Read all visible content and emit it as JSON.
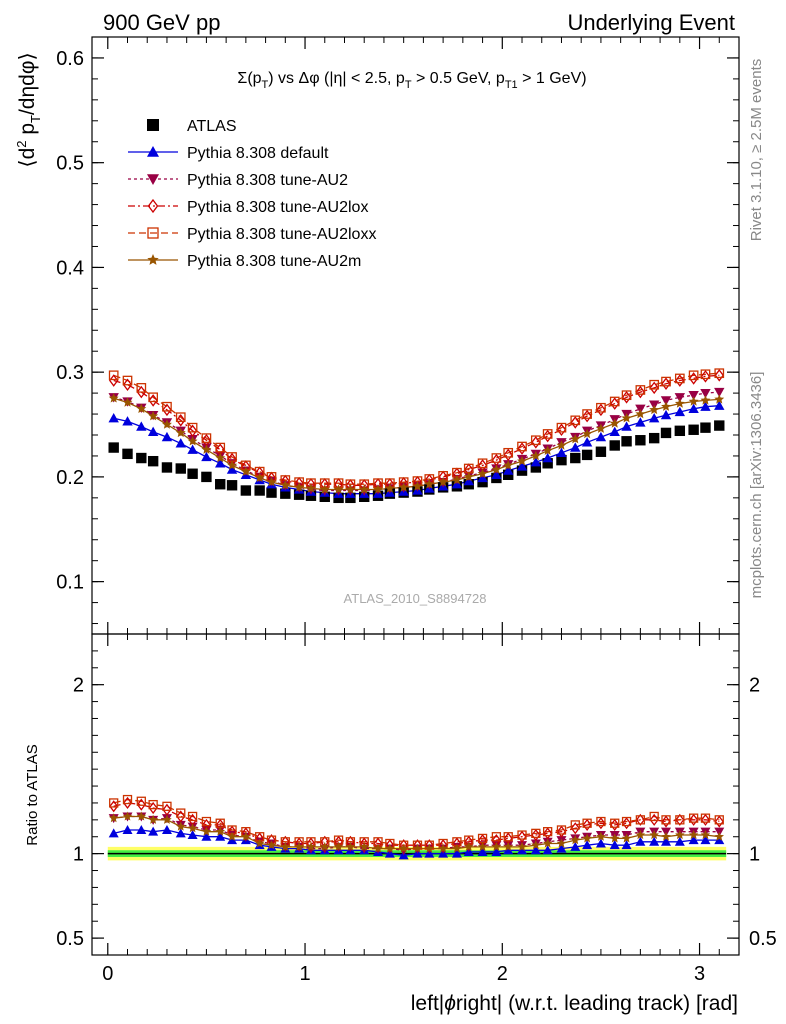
{
  "header": {
    "left": "900 GeV pp",
    "right": "Underlying Event"
  },
  "side_labels": {
    "rivet": "Rivet 3.1.10, ≥ 2.5M events",
    "mcplots": "mcplots.cern.ch [arXiv:1306.3436]"
  },
  "watermark": "ATLAS_2010_S8894728",
  "colors": {
    "atlas": "#000000",
    "default": "#0000dd",
    "au2": "#990044",
    "au2lox": "#cc0000",
    "au2loxx": "#cc3300",
    "au2m": "#995500",
    "band_inner": "#44ee44",
    "band_outer": "#ffff66"
  },
  "chart_data": [
    {
      "type": "scatter",
      "panel": "main",
      "title": "Σ(p_T) vs Δφ (|η| < 2.5, p_T > 0.5 GeV, p_T1 > 1 GeV)",
      "title_parts": {
        "a": "Σ(p",
        "a_sub": "T",
        "b": ") vs Δφ (|η| < 2.5, p",
        "b_sub": "T",
        "c": " > 0.5 GeV, p",
        "c_sub": "T1",
        "d": " > 1 GeV)"
      },
      "ylabel": "⟨d² p_T/dηdφ⟩",
      "ylabel_parts": {
        "open": "⟨d",
        "sup": "2",
        "p": " p",
        "sub": "T",
        "rest": "/dηdφ⟩"
      },
      "ylim": [
        0.05,
        0.62
      ],
      "yticks": [
        0.1,
        0.2,
        0.3,
        0.4,
        0.5,
        0.6
      ],
      "ytick_labels": [
        "0.1",
        "0.2",
        "0.3",
        "0.4",
        "0.5",
        "0.6"
      ],
      "xlim": [
        -0.08,
        3.2
      ],
      "legend_position": "top-left",
      "x": [
        0.03,
        0.1,
        0.17,
        0.23,
        0.3,
        0.37,
        0.43,
        0.5,
        0.57,
        0.63,
        0.7,
        0.77,
        0.83,
        0.9,
        0.97,
        1.03,
        1.1,
        1.17,
        1.23,
        1.3,
        1.37,
        1.43,
        1.5,
        1.57,
        1.63,
        1.7,
        1.77,
        1.83,
        1.9,
        1.97,
        2.03,
        2.1,
        2.17,
        2.23,
        2.3,
        2.37,
        2.43,
        2.5,
        2.57,
        2.63,
        2.7,
        2.77,
        2.83,
        2.9,
        2.97,
        3.03,
        3.1
      ],
      "series": [
        {
          "name": "ATLAS",
          "key": "atlas",
          "marker": "square",
          "line": "none",
          "values": [
            0.228,
            0.222,
            0.218,
            0.215,
            0.209,
            0.208,
            0.203,
            0.2,
            0.193,
            0.192,
            0.187,
            0.187,
            0.185,
            0.184,
            0.183,
            0.182,
            0.181,
            0.18,
            0.18,
            0.181,
            0.182,
            0.184,
            0.185,
            0.186,
            0.188,
            0.19,
            0.191,
            0.193,
            0.195,
            0.199,
            0.202,
            0.206,
            0.209,
            0.213,
            0.216,
            0.218,
            0.221,
            0.224,
            0.23,
            0.234,
            0.235,
            0.237,
            0.242,
            0.244,
            0.245,
            0.247,
            0.249
          ]
        },
        {
          "name": "Pythia 8.308 default",
          "key": "default",
          "marker": "triangle",
          "line": "solid",
          "values": [
            0.256,
            0.253,
            0.248,
            0.243,
            0.238,
            0.232,
            0.226,
            0.219,
            0.213,
            0.207,
            0.202,
            0.197,
            0.193,
            0.19,
            0.188,
            0.186,
            0.185,
            0.184,
            0.184,
            0.184,
            0.184,
            0.185,
            0.186,
            0.187,
            0.189,
            0.191,
            0.193,
            0.196,
            0.199,
            0.202,
            0.206,
            0.21,
            0.214,
            0.218,
            0.223,
            0.228,
            0.233,
            0.238,
            0.243,
            0.248,
            0.252,
            0.256,
            0.259,
            0.262,
            0.265,
            0.267,
            0.268
          ]
        },
        {
          "name": "Pythia 8.308 tune-AU2",
          "key": "au2",
          "marker": "triangle-down",
          "line": "dotted",
          "values": [
            0.276,
            0.272,
            0.266,
            0.259,
            0.252,
            0.244,
            0.236,
            0.228,
            0.22,
            0.213,
            0.206,
            0.2,
            0.196,
            0.192,
            0.19,
            0.188,
            0.187,
            0.187,
            0.187,
            0.187,
            0.188,
            0.189,
            0.19,
            0.191,
            0.193,
            0.195,
            0.198,
            0.201,
            0.204,
            0.208,
            0.212,
            0.217,
            0.222,
            0.227,
            0.233,
            0.238,
            0.244,
            0.249,
            0.255,
            0.26,
            0.265,
            0.269,
            0.273,
            0.276,
            0.278,
            0.28,
            0.281
          ]
        },
        {
          "name": "Pythia 8.308 tune-AU2lox",
          "key": "au2lox",
          "marker": "diamond-open",
          "line": "dashdot",
          "values": [
            0.292,
            0.288,
            0.281,
            0.273,
            0.264,
            0.254,
            0.244,
            0.235,
            0.226,
            0.217,
            0.21,
            0.204,
            0.199,
            0.196,
            0.194,
            0.193,
            0.193,
            0.193,
            0.192,
            0.192,
            0.193,
            0.193,
            0.194,
            0.195,
            0.197,
            0.2,
            0.203,
            0.207,
            0.211,
            0.216,
            0.221,
            0.227,
            0.233,
            0.239,
            0.245,
            0.252,
            0.258,
            0.264,
            0.27,
            0.276,
            0.281,
            0.285,
            0.289,
            0.292,
            0.294,
            0.296,
            0.297
          ]
        },
        {
          "name": "Pythia 8.308 tune-AU2loxx",
          "key": "au2loxx",
          "marker": "square-open",
          "line": "dashed",
          "values": [
            0.297,
            0.292,
            0.285,
            0.276,
            0.267,
            0.257,
            0.247,
            0.237,
            0.228,
            0.219,
            0.211,
            0.205,
            0.2,
            0.197,
            0.195,
            0.194,
            0.194,
            0.194,
            0.193,
            0.193,
            0.194,
            0.194,
            0.195,
            0.196,
            0.198,
            0.201,
            0.204,
            0.208,
            0.213,
            0.218,
            0.223,
            0.229,
            0.235,
            0.241,
            0.247,
            0.254,
            0.26,
            0.266,
            0.272,
            0.278,
            0.283,
            0.288,
            0.291,
            0.294,
            0.297,
            0.298,
            0.299
          ]
        },
        {
          "name": "Pythia 8.308 tune-AU2m",
          "key": "au2m",
          "marker": "star",
          "line": "solid",
          "values": [
            0.275,
            0.271,
            0.265,
            0.258,
            0.25,
            0.242,
            0.234,
            0.226,
            0.218,
            0.211,
            0.205,
            0.199,
            0.195,
            0.192,
            0.19,
            0.189,
            0.188,
            0.188,
            0.188,
            0.188,
            0.188,
            0.189,
            0.19,
            0.191,
            0.193,
            0.195,
            0.197,
            0.2,
            0.203,
            0.207,
            0.211,
            0.215,
            0.22,
            0.225,
            0.23,
            0.236,
            0.241,
            0.246,
            0.251,
            0.256,
            0.26,
            0.264,
            0.267,
            0.27,
            0.272,
            0.273,
            0.274
          ]
        }
      ]
    },
    {
      "type": "scatter",
      "panel": "ratio",
      "ylabel": "Ratio to ATLAS",
      "xlabel": "left|ϕright| (w.r.t. leading track) [rad]",
      "xlabel_parts": {
        "pre": "left|",
        "phi": "ϕ",
        "post": "right| (w.r.t. leading track) [rad]"
      },
      "ylim": [
        0.4,
        2.3
      ],
      "yticks": [
        0.5,
        1,
        2
      ],
      "ytick_labels": [
        "0.5",
        "1",
        "2"
      ],
      "xlim": [
        -0.08,
        3.2
      ],
      "xticks": [
        0,
        1,
        2,
        3
      ],
      "xtick_labels": [
        "0",
        "1",
        "2",
        "3"
      ],
      "band_inner": [
        0.98,
        1.02
      ],
      "band_outer": [
        0.96,
        1.04
      ],
      "reference": 1,
      "x": [
        0.03,
        0.1,
        0.17,
        0.23,
        0.3,
        0.37,
        0.43,
        0.5,
        0.57,
        0.63,
        0.7,
        0.77,
        0.83,
        0.9,
        0.97,
        1.03,
        1.1,
        1.17,
        1.23,
        1.3,
        1.37,
        1.43,
        1.5,
        1.57,
        1.63,
        1.7,
        1.77,
        1.83,
        1.9,
        1.97,
        2.03,
        2.1,
        2.17,
        2.23,
        2.3,
        2.37,
        2.43,
        2.5,
        2.57,
        2.63,
        2.7,
        2.77,
        2.83,
        2.9,
        2.97,
        3.03,
        3.1
      ],
      "series": [
        {
          "name": "Pythia 8.308 default",
          "key": "default",
          "marker": "triangle",
          "line": "solid",
          "values": [
            1.12,
            1.14,
            1.14,
            1.13,
            1.14,
            1.12,
            1.11,
            1.1,
            1.1,
            1.08,
            1.08,
            1.05,
            1.04,
            1.03,
            1.03,
            1.02,
            1.02,
            1.02,
            1.02,
            1.02,
            1.01,
            1.0,
            0.99,
            1.0,
            1.0,
            1.0,
            1.0,
            1.01,
            1.01,
            1.01,
            1.02,
            1.02,
            1.02,
            1.02,
            1.03,
            1.04,
            1.05,
            1.06,
            1.05,
            1.05,
            1.07,
            1.07,
            1.07,
            1.07,
            1.08,
            1.08,
            1.08
          ]
        },
        {
          "name": "Pythia 8.308 tune-AU2",
          "key": "au2",
          "marker": "triangle-down",
          "line": "dotted",
          "values": [
            1.21,
            1.22,
            1.22,
            1.2,
            1.21,
            1.17,
            1.16,
            1.14,
            1.14,
            1.11,
            1.1,
            1.07,
            1.06,
            1.04,
            1.04,
            1.03,
            1.03,
            1.04,
            1.04,
            1.03,
            1.03,
            1.03,
            1.02,
            1.03,
            1.03,
            1.03,
            1.04,
            1.04,
            1.05,
            1.05,
            1.05,
            1.05,
            1.06,
            1.07,
            1.08,
            1.09,
            1.1,
            1.11,
            1.11,
            1.11,
            1.13,
            1.13,
            1.13,
            1.13,
            1.13,
            1.13,
            1.13
          ]
        },
        {
          "name": "Pythia 8.308 tune-AU2lox",
          "key": "au2lox",
          "marker": "diamond-open",
          "line": "dashdot",
          "values": [
            1.28,
            1.3,
            1.29,
            1.27,
            1.26,
            1.22,
            1.2,
            1.17,
            1.17,
            1.13,
            1.12,
            1.09,
            1.08,
            1.07,
            1.06,
            1.06,
            1.07,
            1.07,
            1.07,
            1.06,
            1.06,
            1.05,
            1.05,
            1.05,
            1.05,
            1.05,
            1.06,
            1.07,
            1.08,
            1.08,
            1.09,
            1.1,
            1.11,
            1.12,
            1.13,
            1.15,
            1.17,
            1.18,
            1.17,
            1.18,
            1.2,
            1.2,
            1.19,
            1.2,
            1.2,
            1.2,
            1.19
          ]
        },
        {
          "name": "Pythia 8.308 tune-AU2loxx",
          "key": "au2loxx",
          "marker": "square-open",
          "line": "dashed",
          "values": [
            1.3,
            1.32,
            1.31,
            1.29,
            1.28,
            1.24,
            1.22,
            1.19,
            1.18,
            1.14,
            1.13,
            1.1,
            1.08,
            1.07,
            1.07,
            1.07,
            1.07,
            1.08,
            1.07,
            1.07,
            1.07,
            1.06,
            1.05,
            1.05,
            1.05,
            1.06,
            1.07,
            1.08,
            1.09,
            1.1,
            1.1,
            1.11,
            1.12,
            1.13,
            1.14,
            1.17,
            1.18,
            1.19,
            1.18,
            1.19,
            1.2,
            1.22,
            1.2,
            1.2,
            1.21,
            1.21,
            1.2
          ]
        },
        {
          "name": "Pythia 8.308 tune-AU2m",
          "key": "au2m",
          "marker": "star",
          "line": "solid",
          "values": [
            1.21,
            1.22,
            1.22,
            1.2,
            1.2,
            1.16,
            1.15,
            1.13,
            1.13,
            1.1,
            1.1,
            1.06,
            1.05,
            1.04,
            1.04,
            1.04,
            1.04,
            1.04,
            1.04,
            1.04,
            1.03,
            1.03,
            1.03,
            1.03,
            1.03,
            1.03,
            1.03,
            1.04,
            1.04,
            1.04,
            1.04,
            1.04,
            1.05,
            1.06,
            1.06,
            1.08,
            1.09,
            1.1,
            1.09,
            1.09,
            1.11,
            1.11,
            1.1,
            1.11,
            1.11,
            1.11,
            1.1
          ]
        }
      ]
    }
  ]
}
